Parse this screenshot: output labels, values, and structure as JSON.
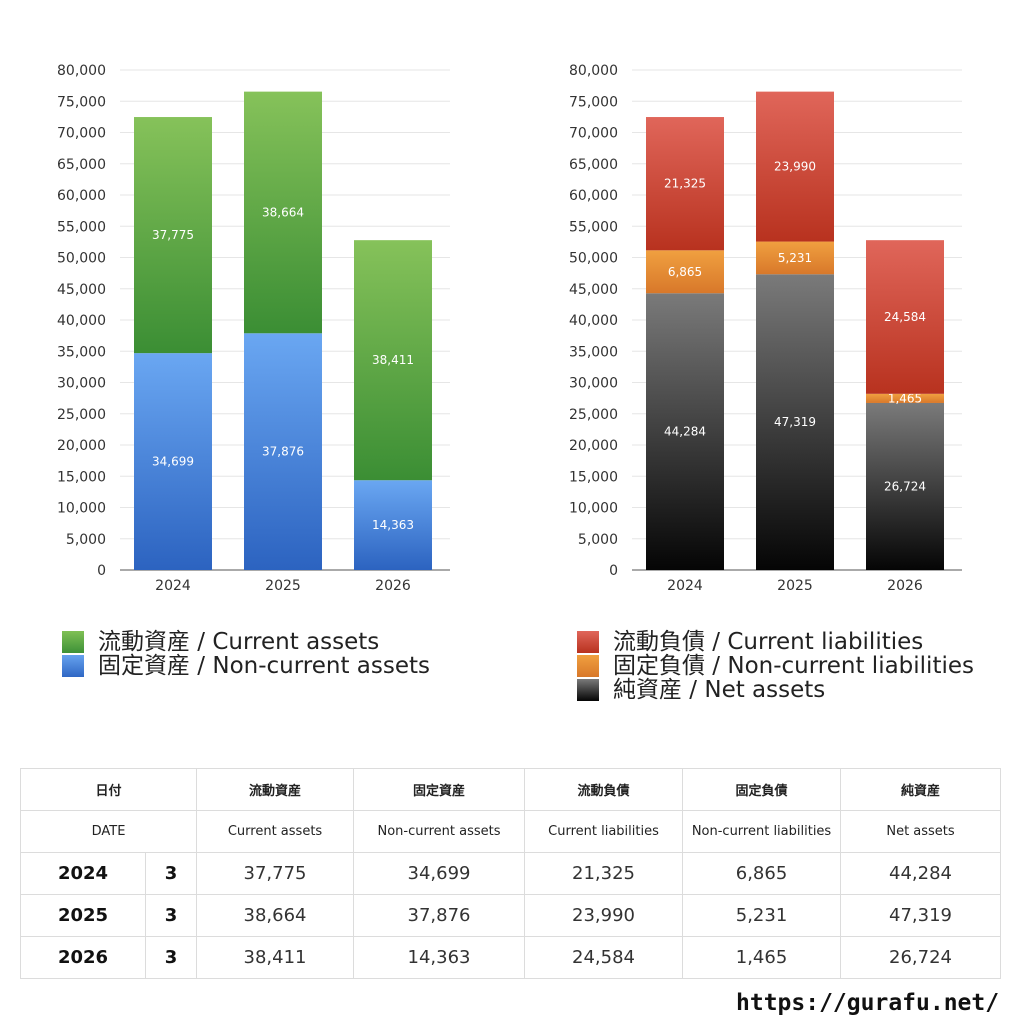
{
  "chart_data": [
    {
      "type": "bar",
      "stacked": true,
      "categories": [
        "2024",
        "2025",
        "2026"
      ],
      "series": [
        {
          "name": "固定資産 / Non-current assets",
          "values": [
            34699,
            37876,
            14363
          ],
          "labels": [
            "34,699",
            "37,876",
            "14,363"
          ],
          "color_top": "#6aa7f2",
          "color_bottom": "#2c63c0"
        },
        {
          "name": "流動資産 / Current assets",
          "values": [
            37775,
            38664,
            38411
          ],
          "labels": [
            "37,775",
            "38,664",
            "38,411"
          ],
          "color_top": "#86c25a",
          "color_bottom": "#3b8e34"
        }
      ],
      "ylim": [
        0,
        80000
      ],
      "yticks": [
        "0",
        "5,000",
        "10,000",
        "15,000",
        "20,000",
        "25,000",
        "30,000",
        "35,000",
        "40,000",
        "45,000",
        "50,000",
        "55,000",
        "60,000",
        "65,000",
        "70,000",
        "75,000",
        "80,000"
      ],
      "grid": true,
      "legend_position": "bottom"
    },
    {
      "type": "bar",
      "stacked": true,
      "categories": [
        "2024",
        "2025",
        "2026"
      ],
      "series": [
        {
          "name": "純資産 / Net assets",
          "values": [
            44284,
            47319,
            26724
          ],
          "labels": [
            "44,284",
            "47,319",
            "26,724"
          ],
          "color_top": "#7a7a7a",
          "color_bottom": "#050505"
        },
        {
          "name": "固定負債 / Non-current liabilities",
          "values": [
            6865,
            5231,
            1465
          ],
          "labels": [
            "6,865",
            "5,231",
            "1,465"
          ],
          "color_top": "#f0a040",
          "color_bottom": "#d8782a"
        },
        {
          "name": "流動負債 / Current liabilities",
          "values": [
            21325,
            23990,
            24584
          ],
          "labels": [
            "21,325",
            "23,990",
            "24,584"
          ],
          "color_top": "#e0665a",
          "color_bottom": "#b8321f"
        }
      ],
      "ylim": [
        0,
        80000
      ],
      "yticks": [
        "0",
        "5,000",
        "10,000",
        "15,000",
        "20,000",
        "25,000",
        "30,000",
        "35,000",
        "40,000",
        "45,000",
        "50,000",
        "55,000",
        "60,000",
        "65,000",
        "70,000",
        "75,000",
        "80,000"
      ],
      "grid": true,
      "legend_position": "bottom"
    }
  ],
  "legend_left": [
    {
      "label": "流動資産 / Current assets",
      "color": "#5aa845"
    },
    {
      "label": "固定資産 / Non-current assets",
      "color": "#4a86de"
    }
  ],
  "legend_right": [
    {
      "label": "流動負債 / Current liabilities",
      "color": "#d9473a"
    },
    {
      "label": "固定負債 / Non-current liabilities",
      "color": "#ea8a35"
    },
    {
      "label": "純資産 / Net assets",
      "color": "#2a2a2a"
    }
  ],
  "table": {
    "headers_jp": [
      "日付",
      "流動資産",
      "固定資産",
      "流動負債",
      "固定負債",
      "純資産"
    ],
    "headers_en": [
      "DATE",
      "Current assets",
      "Non-current assets",
      "Current liabilities",
      "Non-current liabilities",
      "Net assets"
    ],
    "rows": [
      {
        "year": "2024",
        "month": "3",
        "values": [
          "37,775",
          "34,699",
          "21,325",
          "6,865",
          "44,284"
        ]
      },
      {
        "year": "2025",
        "month": "3",
        "values": [
          "38,664",
          "37,876",
          "23,990",
          "5,231",
          "47,319"
        ]
      },
      {
        "year": "2026",
        "month": "3",
        "values": [
          "38,411",
          "14,363",
          "24,584",
          "1,465",
          "26,724"
        ]
      }
    ]
  },
  "site_url": "https://gurafu.net/"
}
